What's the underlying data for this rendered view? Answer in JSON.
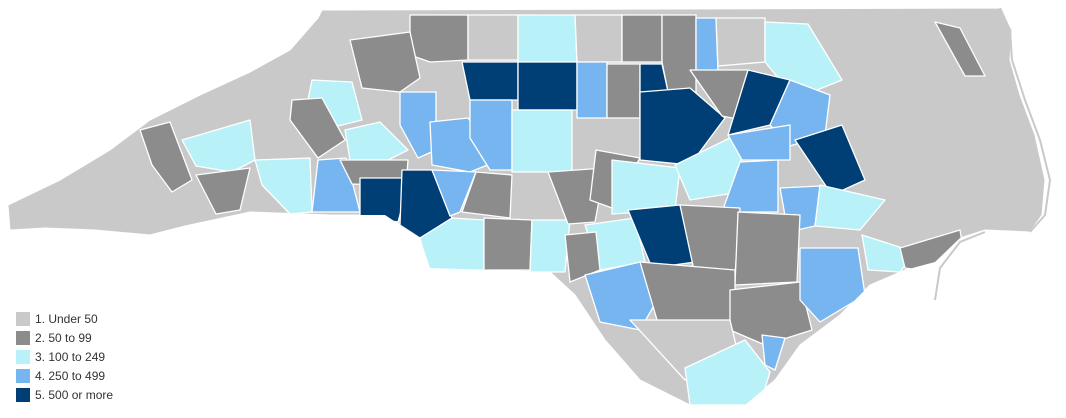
{
  "colors": {
    "under_50": "#c9c9c9",
    "50_to_99": "#8c8c8c",
    "100_to_249": "#b8f2f8",
    "250_to_499": "#76b5f0",
    "500_or_more": "#003f75",
    "background": "#ffffff",
    "coast_water_line": "#c9c9c9"
  },
  "legend": {
    "items": [
      {
        "label": "1. Under 50",
        "color": "#c9c9c9"
      },
      {
        "label": "2. 50 to 99",
        "color": "#8c8c8c"
      },
      {
        "label": "3. 100 to 249",
        "color": "#b8f2f8"
      },
      {
        "label": "4. 250 to 499",
        "color": "#76b5f0"
      },
      {
        "label": "5. 500 or more",
        "color": "#003f75"
      }
    ]
  }
}
